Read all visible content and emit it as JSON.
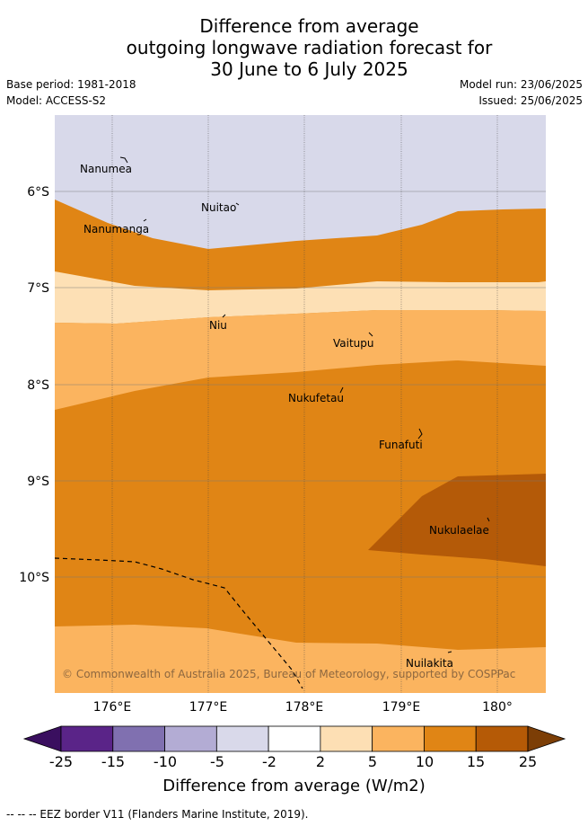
{
  "title": {
    "line1": "Difference from average",
    "line2": "outgoing longwave radiation forecast for",
    "line3": "30 June to 6 July 2025"
  },
  "meta": {
    "base_period": "Base period: 1981-2018",
    "model": "Model: ACCESS-S2",
    "model_run": "Model run: 23/06/2025",
    "issued": "Issued: 25/06/2025"
  },
  "map": {
    "lon_ticks": [
      "176°E",
      "177°E",
      "178°E",
      "179°E",
      "180°"
    ],
    "lat_ticks": [
      "6°S",
      "7°S",
      "8°S",
      "9°S",
      "10°S"
    ],
    "copyright": "© Commonwealth of Australia 2025, Bureau of Meteorology, supported by COSPPac",
    "places": [
      {
        "name": "Nanumea"
      },
      {
        "name": "Nuitao"
      },
      {
        "name": "Nanumanga"
      },
      {
        "name": "Niu"
      },
      {
        "name": "Vaitupu"
      },
      {
        "name": "Nukufetau"
      },
      {
        "name": "Funafuti"
      },
      {
        "name": "Nukulaelae"
      },
      {
        "name": "Nuilakita"
      }
    ]
  },
  "colorbar": {
    "labels": [
      "-25",
      "-15",
      "-10",
      "-5",
      "-2",
      "2",
      "5",
      "10",
      "15",
      "25"
    ],
    "colors": [
      "#5a2488",
      "#8070b0",
      "#b3acd4",
      "#d9d9ea",
      "#ffffff",
      "#fddfb4",
      "#fbb45f",
      "#e08515",
      "#b55a06"
    ],
    "under_color": "#3a0f5f",
    "over_color": "#7c3e06",
    "title": "Difference from average (W/m2)"
  },
  "footer": "--  --  -- EEZ border V11 (Flanders Marine Institute, 2019)."
}
